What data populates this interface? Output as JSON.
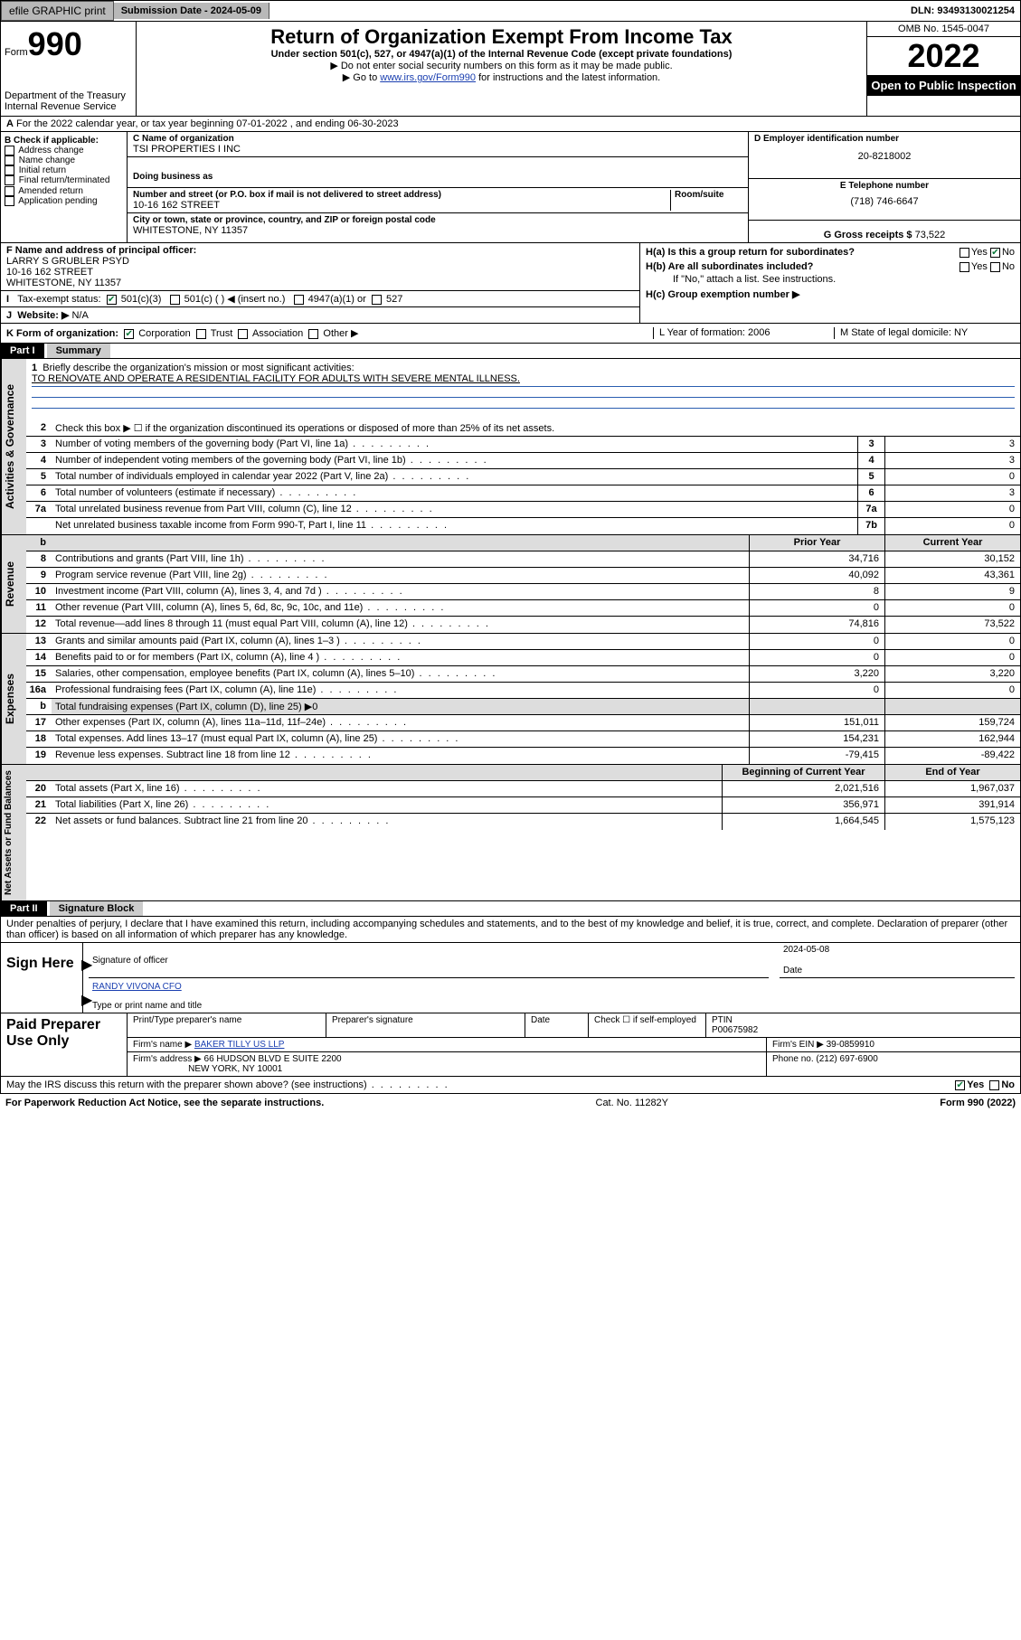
{
  "topbar": {
    "efile": "efile GRAPHIC print",
    "submission_label": "Submission Date - 2024-05-09",
    "dln": "DLN: 93493130021254"
  },
  "header": {
    "form_prefix": "Form",
    "form_number": "990",
    "title": "Return of Organization Exempt From Income Tax",
    "sub1": "Under section 501(c), 527, or 4947(a)(1) of the Internal Revenue Code (except private foundations)",
    "sub2": "▶ Do not enter social security numbers on this form as it may be made public.",
    "sub3_pre": "▶ Go to ",
    "sub3_link": "www.irs.gov/Form990",
    "sub3_post": " for instructions and the latest information.",
    "dept": "Department of the Treasury\nInternal Revenue Service",
    "omb": "OMB No. 1545-0047",
    "year": "2022",
    "inspect": "Open to Public Inspection"
  },
  "line_a": "For the 2022 calendar year, or tax year beginning 07-01-2022   , and ending 06-30-2023",
  "block_b": {
    "title": "B Check if applicable:",
    "opts": [
      "Address change",
      "Name change",
      "Initial return",
      "Final return/terminated",
      "Amended return",
      "Application pending"
    ],
    "c_label": "C Name of organization",
    "c_name": "TSI PROPERTIES I INC",
    "dba_label": "Doing business as",
    "addr_label": "Number and street (or P.O. box if mail is not delivered to street address)",
    "room_label": "Room/suite",
    "addr": "10-16 162 STREET",
    "city_label": "City or town, state or province, country, and ZIP or foreign postal code",
    "city": "WHITESTONE, NY  11357",
    "d_label": "D Employer identification number",
    "d_val": "20-8218002",
    "e_label": "E Telephone number",
    "e_val": "(718) 746-6647",
    "g_label": "G Gross receipts $",
    "g_val": "73,522"
  },
  "block_fhi": {
    "f_label": "F  Name and address of principal officer:",
    "f_name": "LARRY S GRUBLER PSYD",
    "f_addr1": "10-16 162 STREET",
    "f_addr2": "WHITESTONE, NY  11357",
    "i_label": "Tax-exempt status:",
    "i_501c3": "501(c)(3)",
    "i_501c": "501(c) (  ) ◀ (insert no.)",
    "i_4947": "4947(a)(1) or",
    "i_527": "527",
    "j_label": "Website: ▶",
    "j_val": "N/A",
    "ha_label": "H(a)  Is this a group return for subordinates?",
    "hb_label": "H(b)  Are all subordinates included?",
    "hb_note": "If \"No,\" attach a list. See instructions.",
    "hc_label": "H(c)  Group exemption number ▶",
    "yes": "Yes",
    "no": "No"
  },
  "line_k": {
    "k": "K Form of organization:",
    "opts": [
      "Corporation",
      "Trust",
      "Association",
      "Other ▶"
    ],
    "l": "L Year of formation: 2006",
    "m": "M State of legal domicile: NY"
  },
  "part1": {
    "tab": "Part I",
    "title": "Summary",
    "l1_label": "Briefly describe the organization's mission or most significant activities:",
    "l1_text": "TO RENOVATE AND OPERATE A RESIDENTIAL FACILITY FOR ADULTS WITH SEVERE MENTAL ILLNESS.",
    "l2": "Check this box ▶ ☐  if the organization discontinued its operations or disposed of more than 25% of its net assets.",
    "lines_gov": [
      {
        "n": "3",
        "t": "Number of voting members of the governing body (Part VI, line 1a)",
        "box": "3",
        "v": "3"
      },
      {
        "n": "4",
        "t": "Number of independent voting members of the governing body (Part VI, line 1b)",
        "box": "4",
        "v": "3"
      },
      {
        "n": "5",
        "t": "Total number of individuals employed in calendar year 2022 (Part V, line 2a)",
        "box": "5",
        "v": "0"
      },
      {
        "n": "6",
        "t": "Total number of volunteers (estimate if necessary)",
        "box": "6",
        "v": "3"
      },
      {
        "n": "7a",
        "t": "Total unrelated business revenue from Part VIII, column (C), line 12",
        "box": "7a",
        "v": "0"
      },
      {
        "n": "",
        "t": "Net unrelated business taxable income from Form 990-T, Part I, line 11",
        "box": "7b",
        "v": "0"
      }
    ],
    "col_head_prior": "Prior Year",
    "col_head_curr": "Current Year",
    "lines_rev": [
      {
        "n": "8",
        "t": "Contributions and grants (Part VIII, line 1h)",
        "p": "34,716",
        "c": "30,152"
      },
      {
        "n": "9",
        "t": "Program service revenue (Part VIII, line 2g)",
        "p": "40,092",
        "c": "43,361"
      },
      {
        "n": "10",
        "t": "Investment income (Part VIII, column (A), lines 3, 4, and 7d )",
        "p": "8",
        "c": "9"
      },
      {
        "n": "11",
        "t": "Other revenue (Part VIII, column (A), lines 5, 6d, 8c, 9c, 10c, and 11e)",
        "p": "0",
        "c": "0"
      },
      {
        "n": "12",
        "t": "Total revenue—add lines 8 through 11 (must equal Part VIII, column (A), line 12)",
        "p": "74,816",
        "c": "73,522"
      }
    ],
    "lines_exp": [
      {
        "n": "13",
        "t": "Grants and similar amounts paid (Part IX, column (A), lines 1–3 )",
        "p": "0",
        "c": "0"
      },
      {
        "n": "14",
        "t": "Benefits paid to or for members (Part IX, column (A), line 4 )",
        "p": "0",
        "c": "0"
      },
      {
        "n": "15",
        "t": "Salaries, other compensation, employee benefits (Part IX, column (A), lines 5–10)",
        "p": "3,220",
        "c": "3,220"
      },
      {
        "n": "16a",
        "t": "Professional fundraising fees (Part IX, column (A), line 11e)",
        "p": "0",
        "c": "0"
      },
      {
        "n": "b",
        "t": "Total fundraising expenses (Part IX, column (D), line 25) ▶0",
        "p": "",
        "c": ""
      },
      {
        "n": "17",
        "t": "Other expenses (Part IX, column (A), lines 11a–11d, 11f–24e)",
        "p": "151,011",
        "c": "159,724"
      },
      {
        "n": "18",
        "t": "Total expenses. Add lines 13–17 (must equal Part IX, column (A), line 25)",
        "p": "154,231",
        "c": "162,944"
      },
      {
        "n": "19",
        "t": "Revenue less expenses. Subtract line 18 from line 12",
        "p": "-79,415",
        "c": "-89,422"
      }
    ],
    "col_head_begin": "Beginning of Current Year",
    "col_head_end": "End of Year",
    "lines_net": [
      {
        "n": "20",
        "t": "Total assets (Part X, line 16)",
        "p": "2,021,516",
        "c": "1,967,037"
      },
      {
        "n": "21",
        "t": "Total liabilities (Part X, line 26)",
        "p": "356,971",
        "c": "391,914"
      },
      {
        "n": "22",
        "t": "Net assets or fund balances. Subtract line 21 from line 20",
        "p": "1,664,545",
        "c": "1,575,123"
      }
    ]
  },
  "part2": {
    "tab": "Part II",
    "title": "Signature Block",
    "declaration": "Under penalties of perjury, I declare that I have examined this return, including accompanying schedules and statements, and to the best of my knowledge and belief, it is true, correct, and complete. Declaration of preparer (other than officer) is based on all information of which preparer has any knowledge.",
    "sign_here": "Sign Here",
    "sig_officer": "Signature of officer",
    "sig_date_val": "2024-05-08",
    "sig_date": "Date",
    "officer_name": "RANDY VIVONA  CFO",
    "officer_label": "Type or print name and title",
    "paid": "Paid Preparer Use Only",
    "prep_name_label": "Print/Type preparer's name",
    "prep_sig_label": "Preparer's signature",
    "prep_date_label": "Date",
    "prep_check": "Check ☐ if self-employed",
    "ptin_label": "PTIN",
    "ptin": "P00675982",
    "firm_name_label": "Firm's name    ▶",
    "firm_name": "BAKER TILLY US LLP",
    "firm_ein_label": "Firm's EIN ▶",
    "firm_ein": "39-0859910",
    "firm_addr_label": "Firm's address ▶",
    "firm_addr1": "66 HUDSON BLVD E SUITE 2200",
    "firm_addr2": "NEW YORK, NY  10001",
    "phone_label": "Phone no.",
    "phone": "(212) 697-6900",
    "may_irs": "May the IRS discuss this return with the preparer shown above? (see instructions)"
  },
  "footer": {
    "left": "For Paperwork Reduction Act Notice, see the separate instructions.",
    "mid": "Cat. No. 11282Y",
    "right": "Form 990 (2022)"
  },
  "side_labels": {
    "gov": "Activities & Governance",
    "rev": "Revenue",
    "exp": "Expenses",
    "net": "Net Assets or Fund Balances"
  }
}
